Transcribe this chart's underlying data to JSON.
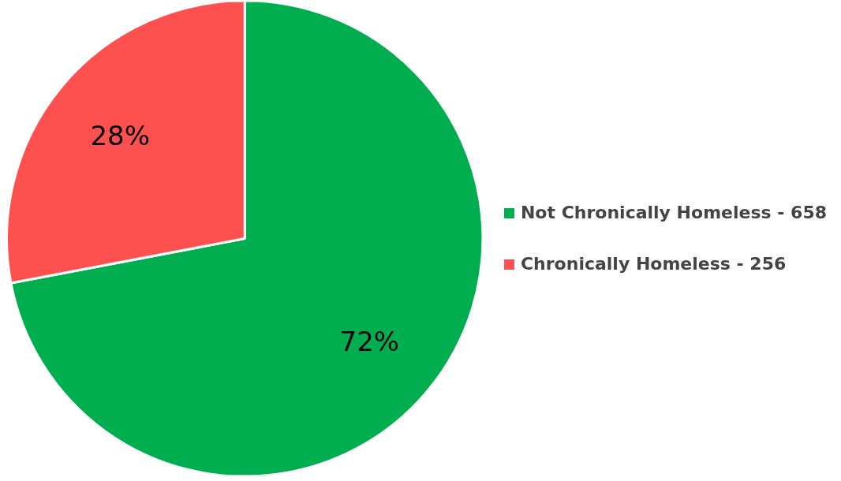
{
  "chart_data": {
    "type": "pie",
    "categories": [
      "Not Chronically Homeless - 658",
      "Chronically Homeless - 256"
    ],
    "values": [
      72,
      28
    ],
    "colors": [
      "#00ae50",
      "#ff5050"
    ],
    "value_labels": [
      "72%",
      "28%"
    ],
    "legend": "right"
  }
}
